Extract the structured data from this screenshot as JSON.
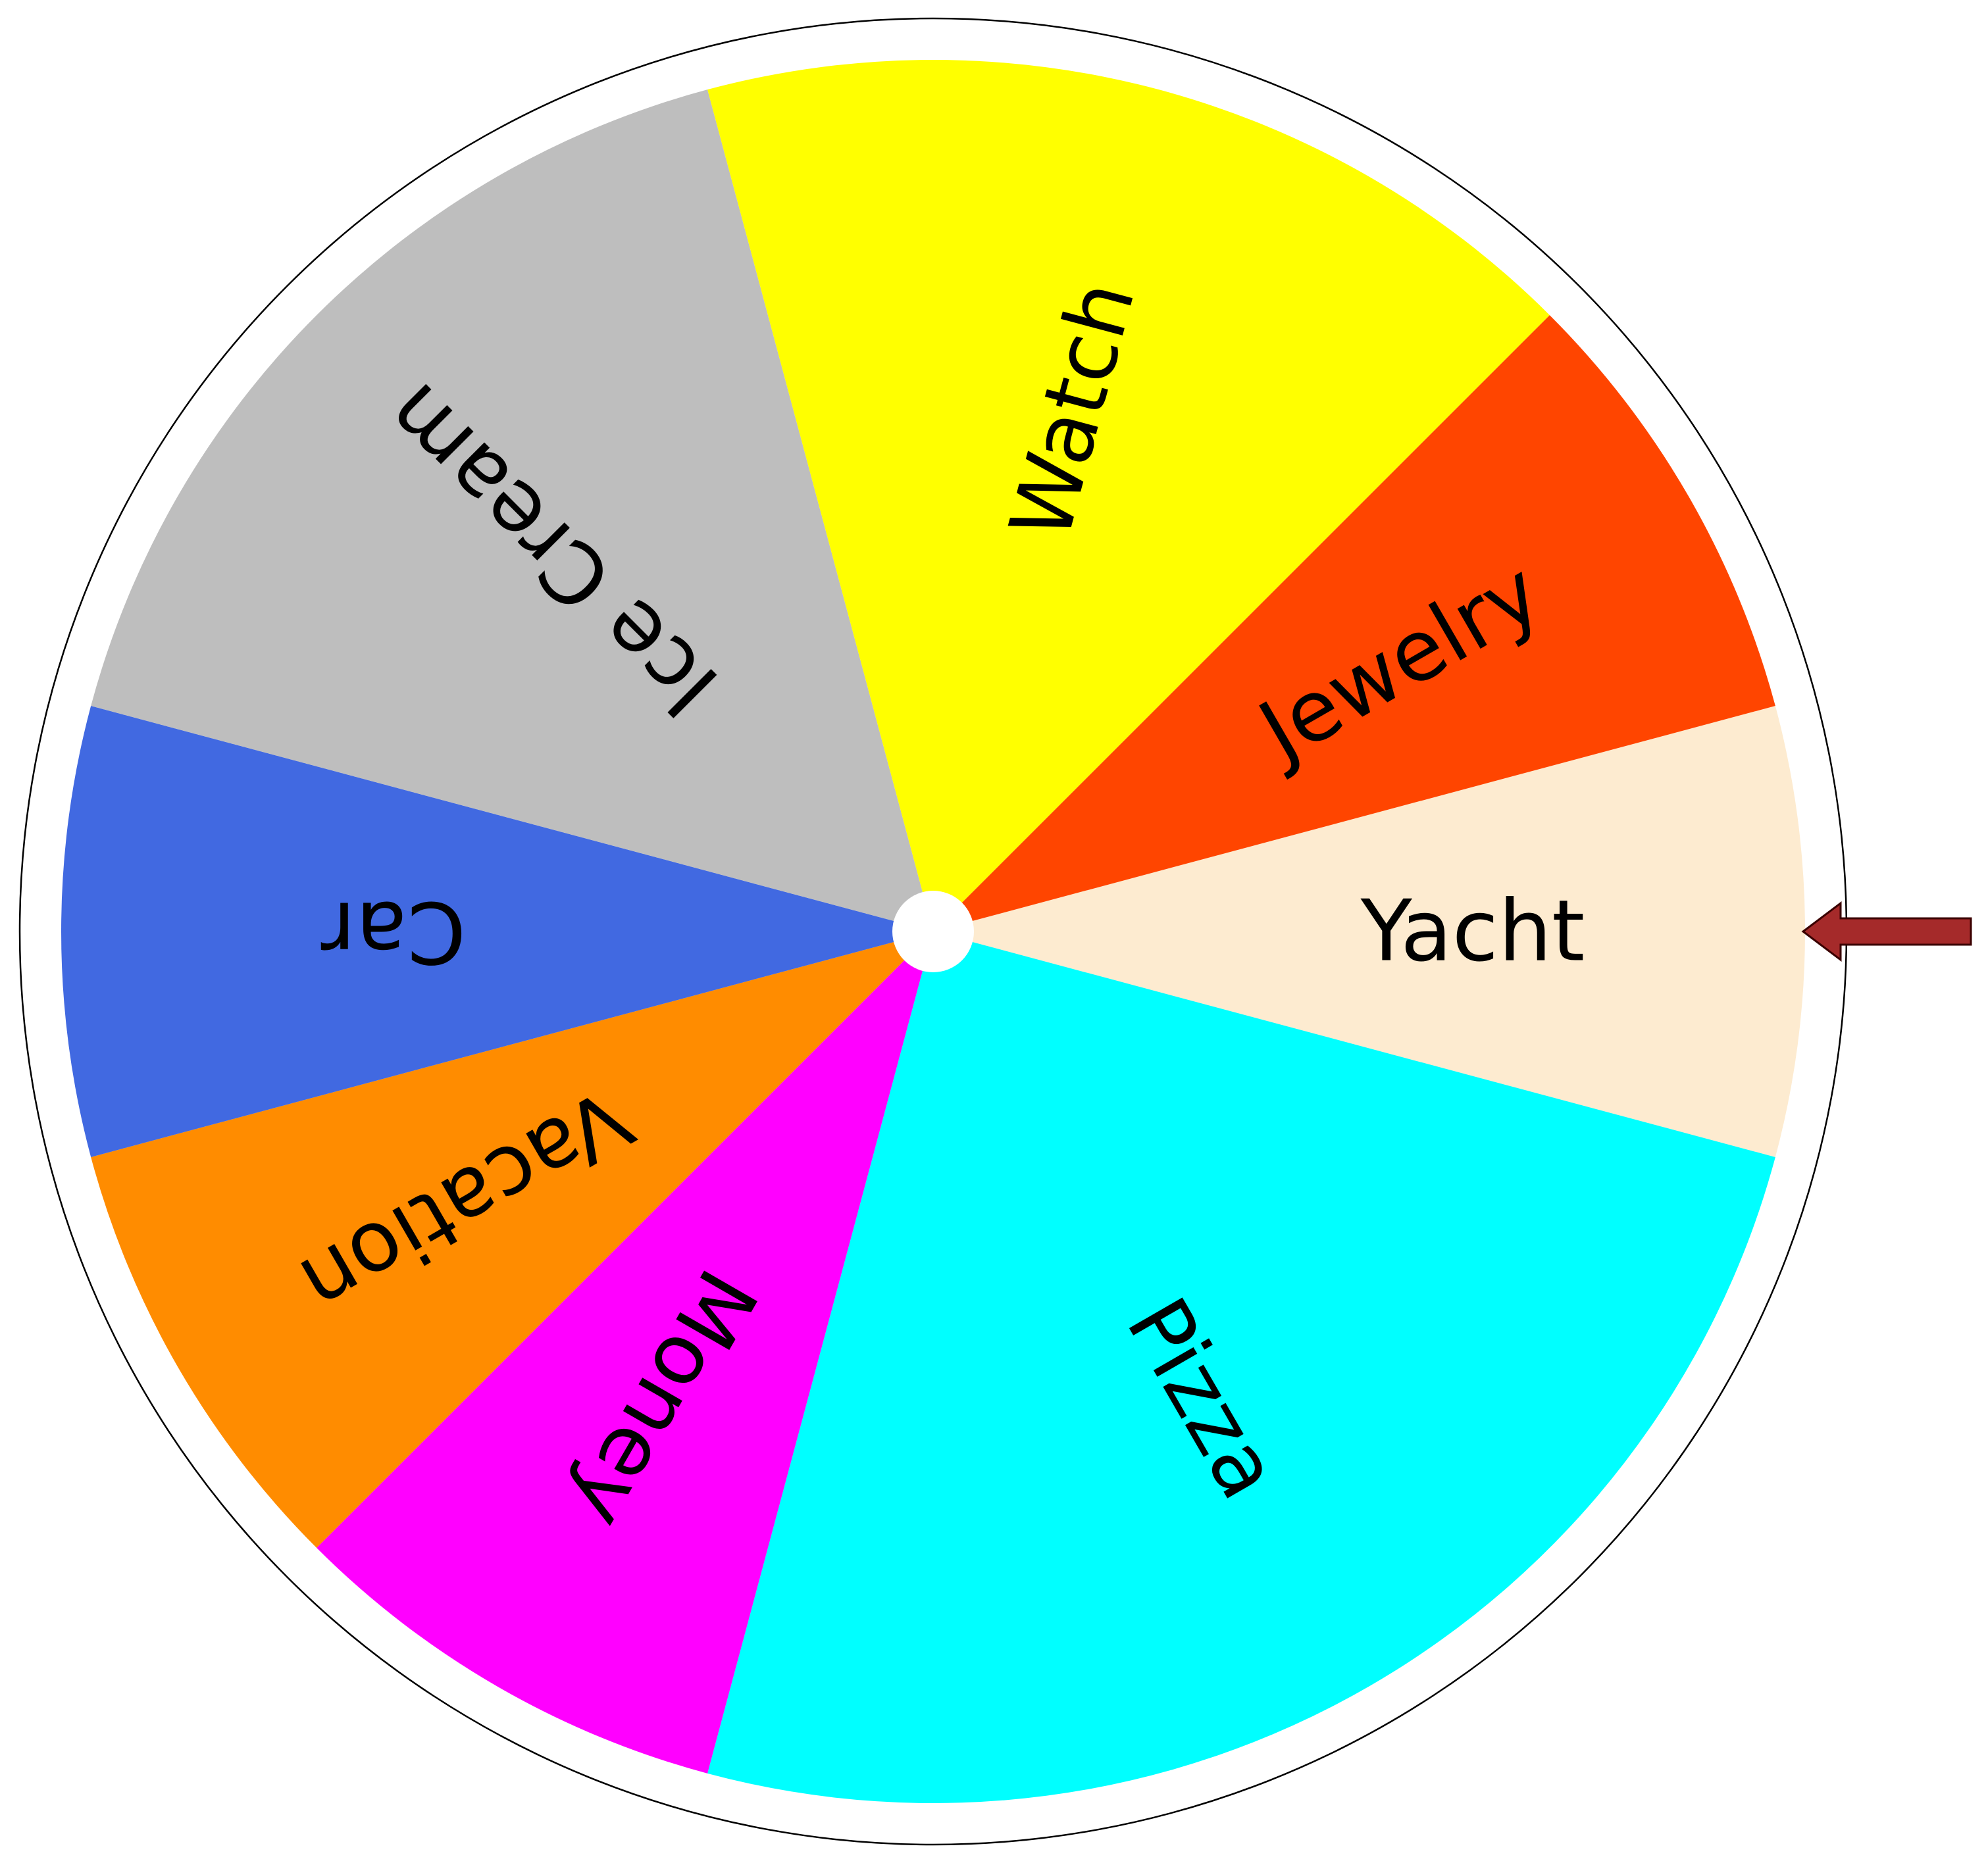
{
  "wheel": {
    "segments": [
      {
        "label": "Yacht",
        "color": "#FDEBD0",
        "start_deg": -15,
        "end_deg": 15
      },
      {
        "label": "Pizza",
        "color": "#00FFFF",
        "start_deg": 15,
        "end_deg": 105
      },
      {
        "label": "Money",
        "color": "#FF00FF",
        "start_deg": 105,
        "end_deg": 135
      },
      {
        "label": "Vacation",
        "color": "#FF8C00",
        "start_deg": 135,
        "end_deg": 165
      },
      {
        "label": "Car",
        "color": "#4169E1",
        "start_deg": 165,
        "end_deg": 195
      },
      {
        "label": "Ice Cream",
        "color": "#BEBEBE",
        "start_deg": 195,
        "end_deg": 255
      },
      {
        "label": "Watch",
        "color": "#FFFF00",
        "start_deg": 255,
        "end_deg": 315
      },
      {
        "label": "Jewelry",
        "color": "#FF4500",
        "start_deg": 315,
        "end_deg": 345
      }
    ],
    "rim_color": "#FFFFFF",
    "outline_color": "#000000",
    "hub_color": "#FFFFFF",
    "selected": "Yacht"
  },
  "pointer": {
    "icon": "arrow-left-icon",
    "color": "#A52A2A",
    "outline": "#3A0000"
  }
}
